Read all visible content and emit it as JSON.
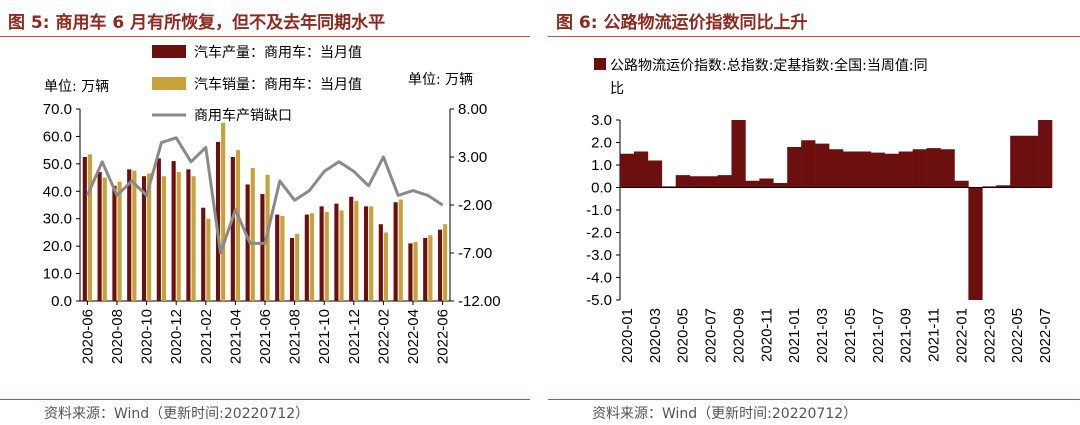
{
  "charts": [
    {
      "figure_title": "图 5: 商用车 6 月有所恢复，但不及去年同期水平",
      "source": "资料来源：Wind（更新时间:20220712）",
      "left_unit_label": "单位: 万辆",
      "right_unit_label": "单位: 万辆"
    },
    {
      "figure_title": "图 6: 公路物流运价指数同比上升",
      "source": "资料来源：Wind（更新时间:20220712）"
    }
  ],
  "colors": {
    "title": "#8b2a1e",
    "production": "#6b0f0f",
    "sales": "#c9a13a",
    "gap": "#8a8a8a",
    "freight": "#6b0f0f"
  },
  "chart_data": [
    {
      "type": "bar+line",
      "categories": [
        "2020-06",
        "2020-07",
        "2020-08",
        "2020-09",
        "2020-10",
        "2020-11",
        "2020-12",
        "2021-01",
        "2021-02",
        "2021-03",
        "2021-04",
        "2021-05",
        "2021-06",
        "2021-07",
        "2021-08",
        "2021-09",
        "2021-10",
        "2021-11",
        "2021-12",
        "2022-01",
        "2022-02",
        "2022-03",
        "2022-04",
        "2022-05",
        "2022-06"
      ],
      "x_tick_labels": [
        "2020-06",
        "2020-08",
        "2020-10",
        "2020-12",
        "2021-02",
        "2021-04",
        "2021-06",
        "2021-08",
        "2021-10",
        "2021-12",
        "2022-02",
        "2022-04",
        "2022-06"
      ],
      "y_left": {
        "min": 0,
        "max": 70,
        "ticks": [
          "0.0",
          "10.0",
          "20.0",
          "30.0",
          "40.0",
          "50.0",
          "60.0",
          "70.0"
        ]
      },
      "y_right": {
        "min": -12,
        "max": 8,
        "ticks": [
          "-12.00",
          "-7.00",
          "-2.00",
          "3.00",
          "8.00"
        ]
      },
      "series": [
        {
          "name": "汽车产量：商用车：当月值",
          "kind": "bar",
          "axis": "left",
          "values": [
            52.5,
            47,
            42,
            48,
            45.5,
            52,
            51,
            48,
            34,
            58,
            52.5,
            42.5,
            39,
            31.5,
            23,
            31.5,
            34.5,
            35.5,
            38,
            34.5,
            28,
            36,
            21,
            23,
            26
          ]
        },
        {
          "name": "汽车销量：商用车：当月值",
          "kind": "bar",
          "axis": "left",
          "values": [
            53.5,
            45,
            43.5,
            47.5,
            46.5,
            45.5,
            47,
            45.5,
            30,
            65,
            55,
            48.5,
            46,
            31,
            24.5,
            32,
            32.5,
            33,
            36.5,
            34.5,
            25,
            37,
            21.5,
            24,
            28
          ]
        },
        {
          "name": "商用车产销缺口",
          "kind": "line",
          "axis": "right",
          "values": [
            -1,
            2.5,
            -1,
            0.5,
            -1,
            4.5,
            5,
            2.5,
            4,
            -7,
            -2.5,
            -6,
            -6,
            0.5,
            -1.5,
            -0.5,
            1.5,
            2.5,
            1.5,
            0,
            3,
            -1,
            -0.5,
            -1,
            -2
          ]
        }
      ],
      "legend": [
        "汽车产量：商用车：当月值",
        "汽车销量：商用车：当月值",
        "商用车产销缺口"
      ],
      "legend_position": "top-center"
    },
    {
      "type": "bar",
      "categories": [
        "2020-01",
        "2020-02",
        "2020-03",
        "2020-04",
        "2020-05",
        "2020-06",
        "2020-07",
        "2020-08",
        "2020-09",
        "2020-10",
        "2020-11",
        "2020-12",
        "2021-01",
        "2021-02",
        "2021-03",
        "2021-04",
        "2021-05",
        "2021-06",
        "2021-07",
        "2021-08",
        "2021-09",
        "2021-10",
        "2021-11",
        "2021-12",
        "2022-01",
        "2022-02",
        "2022-03",
        "2022-04",
        "2022-05",
        "2022-06",
        "2022-07"
      ],
      "x_tick_labels": [
        "2020-01",
        "2020-03",
        "2020-05",
        "2020-07",
        "2020-09",
        "2020-11",
        "2021-01",
        "2021-03",
        "2021-05",
        "2021-07",
        "2021-09",
        "2021-11",
        "2022-01",
        "2022-03",
        "2022-05",
        "2022-07"
      ],
      "y": {
        "min": -5,
        "max": 3,
        "ticks": [
          "-5.0",
          "-4.0",
          "-3.0",
          "-2.0",
          "-1.0",
          "0.0",
          "1.0",
          "2.0",
          "3.0"
        ]
      },
      "series": [
        {
          "name": "公路物流运价指数:总指数:定基指数:全国:当周值:同比",
          "values": [
            1.5,
            1.6,
            1.2,
            0.05,
            0.55,
            0.5,
            0.5,
            0.55,
            3.0,
            0.3,
            0.4,
            0.2,
            1.8,
            2.1,
            1.95,
            1.7,
            1.6,
            1.6,
            1.55,
            1.5,
            1.6,
            1.7,
            1.75,
            1.7,
            0.3,
            -5.0,
            0.05,
            0.1,
            2.3,
            2.3,
            3.0
          ]
        }
      ],
      "legend": [
        "公路物流运价指数:总指数:定基指数:全国:当周值:同比"
      ],
      "legend_position": "top-center"
    }
  ]
}
